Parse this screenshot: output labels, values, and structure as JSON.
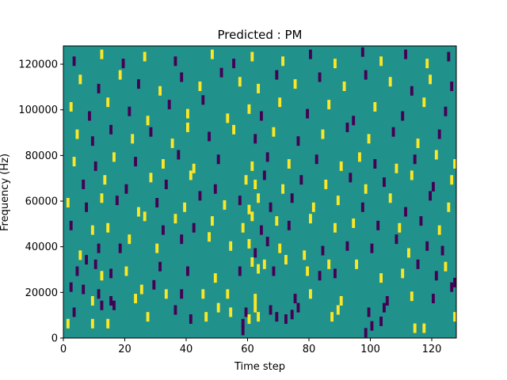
{
  "chart_data": {
    "type": "heatmap",
    "title": "Predicted : PM",
    "xlabel": "Time step",
    "ylabel": "Frequency (Hz)",
    "xlim": [
      0,
      128
    ],
    "ylim": [
      0,
      128000
    ],
    "x_ticks": [
      0,
      20,
      40,
      60,
      80,
      100,
      120
    ],
    "x_tick_labels": [
      "0",
      "20",
      "40",
      "60",
      "80",
      "100",
      "120"
    ],
    "y_ticks": [
      0,
      20000,
      40000,
      60000,
      80000,
      100000,
      120000
    ],
    "y_tick_labels": [
      "0",
      "20000",
      "40000",
      "60000",
      "80000",
      "100000",
      "120000"
    ],
    "grid": false,
    "colors": {
      "background": "#21918c",
      "low": "#440154",
      "high": "#fde725"
    },
    "value_encoding": {
      "background": 0,
      "low": -1,
      "high": 1
    },
    "cells": [
      {
        "t": 1,
        "f": 7000,
        "v": 1
      },
      {
        "t": 9,
        "f": 7000,
        "v": 1
      },
      {
        "t": 14,
        "f": 7000,
        "v": 1
      },
      {
        "t": 58,
        "f": 7000,
        "v": -1
      },
      {
        "t": 58,
        "f": 4000,
        "v": -1
      },
      {
        "t": 98,
        "f": 3000,
        "v": -1
      },
      {
        "t": 100,
        "f": 6000,
        "v": -1
      },
      {
        "t": 103,
        "f": 8000,
        "v": -1
      },
      {
        "t": 114,
        "f": 5000,
        "v": 1
      },
      {
        "t": 117,
        "f": 5000,
        "v": 1
      },
      {
        "t": 3,
        "f": 12000,
        "v": -1
      },
      {
        "t": 12,
        "f": 15000,
        "v": -1
      },
      {
        "t": 16,
        "f": 15000,
        "v": -1
      },
      {
        "t": 27,
        "f": 10000,
        "v": 1
      },
      {
        "t": 36,
        "f": 13000,
        "v": -1
      },
      {
        "t": 41,
        "f": 9000,
        "v": -1
      },
      {
        "t": 46,
        "f": 10000,
        "v": 1
      },
      {
        "t": 50,
        "f": 14000,
        "v": 1
      },
      {
        "t": 54,
        "f": 12000,
        "v": 1
      },
      {
        "t": 59,
        "f": 12000,
        "v": -1
      },
      {
        "t": 60,
        "f": 9000,
        "v": 1
      },
      {
        "t": 62,
        "f": 14000,
        "v": 1
      },
      {
        "t": 63,
        "f": 10000,
        "v": 1
      },
      {
        "t": 67,
        "f": 13000,
        "v": -1
      },
      {
        "t": 69,
        "f": 10000,
        "v": -1
      },
      {
        "t": 72,
        "f": 9000,
        "v": -1
      },
      {
        "t": 74,
        "f": 11000,
        "v": -1
      },
      {
        "t": 76,
        "f": 14000,
        "v": -1
      },
      {
        "t": 87,
        "f": 10000,
        "v": 1
      },
      {
        "t": 89,
        "f": 13000,
        "v": 1
      },
      {
        "t": 99,
        "f": 12000,
        "v": -1
      },
      {
        "t": 104,
        "f": 14000,
        "v": -1
      },
      {
        "t": 127,
        "f": 10000,
        "v": 1
      },
      {
        "t": 2,
        "f": 23000,
        "v": -1
      },
      {
        "t": 6,
        "f": 22000,
        "v": -1
      },
      {
        "t": 9,
        "f": 17000,
        "v": 1
      },
      {
        "t": 11,
        "f": 20000,
        "v": -1
      },
      {
        "t": 15,
        "f": 17000,
        "v": -1
      },
      {
        "t": 23,
        "f": 18000,
        "v": 1
      },
      {
        "t": 25,
        "f": 22000,
        "v": 1
      },
      {
        "t": 29,
        "f": 24000,
        "v": -1
      },
      {
        "t": 33,
        "f": 20000,
        "v": 1
      },
      {
        "t": 38,
        "f": 20000,
        "v": -1
      },
      {
        "t": 45,
        "f": 20000,
        "v": 1
      },
      {
        "t": 53,
        "f": 20000,
        "v": 1
      },
      {
        "t": 62,
        "f": 18000,
        "v": 1
      },
      {
        "t": 75,
        "f": 18000,
        "v": -1
      },
      {
        "t": 80,
        "f": 20000,
        "v": 1
      },
      {
        "t": 90,
        "f": 17000,
        "v": 1
      },
      {
        "t": 105,
        "f": 17000,
        "v": -1
      },
      {
        "t": 113,
        "f": 19000,
        "v": 1
      },
      {
        "t": 120,
        "f": 18000,
        "v": -1
      },
      {
        "t": 126,
        "f": 23000,
        "v": -1
      },
      {
        "t": 127,
        "f": 25000,
        "v": -1
      },
      {
        "t": 4,
        "f": 30000,
        "v": -1
      },
      {
        "t": 7,
        "f": 35000,
        "v": -1
      },
      {
        "t": 10,
        "f": 33000,
        "v": -1
      },
      {
        "t": 12,
        "f": 28000,
        "v": 1
      },
      {
        "t": 15,
        "f": 29000,
        "v": -1
      },
      {
        "t": 20,
        "f": 30000,
        "v": 1
      },
      {
        "t": 31,
        "f": 32000,
        "v": -1
      },
      {
        "t": 40,
        "f": 30000,
        "v": -1
      },
      {
        "t": 49,
        "f": 27000,
        "v": 1
      },
      {
        "t": 57,
        "f": 30000,
        "v": -1
      },
      {
        "t": 61,
        "f": 34000,
        "v": 1
      },
      {
        "t": 63,
        "f": 31000,
        "v": 1
      },
      {
        "t": 65,
        "f": 33000,
        "v": 1
      },
      {
        "t": 68,
        "f": 30000,
        "v": -1
      },
      {
        "t": 72,
        "f": 35000,
        "v": 1
      },
      {
        "t": 79,
        "f": 30000,
        "v": 1
      },
      {
        "t": 83,
        "f": 28000,
        "v": -1
      },
      {
        "t": 86,
        "f": 33000,
        "v": 1
      },
      {
        "t": 88,
        "f": 29000,
        "v": -1
      },
      {
        "t": 95,
        "f": 33000,
        "v": 1
      },
      {
        "t": 103,
        "f": 27000,
        "v": 1
      },
      {
        "t": 110,
        "f": 29000,
        "v": 1
      },
      {
        "t": 115,
        "f": 33000,
        "v": -1
      },
      {
        "t": 121,
        "f": 28000,
        "v": -1
      },
      {
        "t": 124,
        "f": 32000,
        "v": 1
      },
      {
        "t": 5,
        "f": 37000,
        "v": 1
      },
      {
        "t": 11,
        "f": 40000,
        "v": -1
      },
      {
        "t": 18,
        "f": 40000,
        "v": -1
      },
      {
        "t": 30,
        "f": 40000,
        "v": 1
      },
      {
        "t": 38,
        "f": 44000,
        "v": -1
      },
      {
        "t": 47,
        "f": 45000,
        "v": 1
      },
      {
        "t": 54,
        "f": 41000,
        "v": 1
      },
      {
        "t": 60,
        "f": 42000,
        "v": 1
      },
      {
        "t": 62,
        "f": 38000,
        "v": -1
      },
      {
        "t": 66,
        "f": 43000,
        "v": -1
      },
      {
        "t": 70,
        "f": 40000,
        "v": 1
      },
      {
        "t": 78,
        "f": 37000,
        "v": 1
      },
      {
        "t": 84,
        "f": 39000,
        "v": -1
      },
      {
        "t": 92,
        "f": 41000,
        "v": -1
      },
      {
        "t": 100,
        "f": 40000,
        "v": -1
      },
      {
        "t": 108,
        "f": 44000,
        "v": -1
      },
      {
        "t": 112,
        "f": 38000,
        "v": 1
      },
      {
        "t": 118,
        "f": 41000,
        "v": -1
      },
      {
        "t": 123,
        "f": 39000,
        "v": -1
      },
      {
        "t": 2,
        "f": 50000,
        "v": -1
      },
      {
        "t": 9,
        "f": 48000,
        "v": 1
      },
      {
        "t": 14,
        "f": 49000,
        "v": 1
      },
      {
        "t": 21,
        "f": 44000,
        "v": 1
      },
      {
        "t": 26,
        "f": 54000,
        "v": 1
      },
      {
        "t": 32,
        "f": 48000,
        "v": -1
      },
      {
        "t": 36,
        "f": 53000,
        "v": 1
      },
      {
        "t": 42,
        "f": 49000,
        "v": -1
      },
      {
        "t": 48,
        "f": 52000,
        "v": 1
      },
      {
        "t": 58,
        "f": 49000,
        "v": 1
      },
      {
        "t": 61,
        "f": 54000,
        "v": 1
      },
      {
        "t": 64,
        "f": 48000,
        "v": -1
      },
      {
        "t": 69,
        "f": 52000,
        "v": 1
      },
      {
        "t": 73,
        "f": 50000,
        "v": -1
      },
      {
        "t": 80,
        "f": 53000,
        "v": 1
      },
      {
        "t": 88,
        "f": 49000,
        "v": 1
      },
      {
        "t": 94,
        "f": 51000,
        "v": 1
      },
      {
        "t": 102,
        "f": 50000,
        "v": -1
      },
      {
        "t": 109,
        "f": 49000,
        "v": 1
      },
      {
        "t": 116,
        "f": 52000,
        "v": -1
      },
      {
        "t": 122,
        "f": 48000,
        "v": 1
      },
      {
        "t": 1,
        "f": 60000,
        "v": 1
      },
      {
        "t": 7,
        "f": 58000,
        "v": -1
      },
      {
        "t": 12,
        "f": 62000,
        "v": 1
      },
      {
        "t": 17,
        "f": 61000,
        "v": -1
      },
      {
        "t": 24,
        "f": 56000,
        "v": 1
      },
      {
        "t": 30,
        "f": 60000,
        "v": -1
      },
      {
        "t": 39,
        "f": 58000,
        "v": 1
      },
      {
        "t": 44,
        "f": 63000,
        "v": -1
      },
      {
        "t": 52,
        "f": 59000,
        "v": 1
      },
      {
        "t": 57,
        "f": 61000,
        "v": -1
      },
      {
        "t": 60,
        "f": 57000,
        "v": 1
      },
      {
        "t": 63,
        "f": 62000,
        "v": 1
      },
      {
        "t": 67,
        "f": 58000,
        "v": -1
      },
      {
        "t": 74,
        "f": 62000,
        "v": -1
      },
      {
        "t": 81,
        "f": 58000,
        "v": 1
      },
      {
        "t": 89,
        "f": 61000,
        "v": 1
      },
      {
        "t": 97,
        "f": 58000,
        "v": -1
      },
      {
        "t": 106,
        "f": 62000,
        "v": 1
      },
      {
        "t": 111,
        "f": 56000,
        "v": -1
      },
      {
        "t": 119,
        "f": 63000,
        "v": -1
      },
      {
        "t": 125,
        "f": 58000,
        "v": 1
      },
      {
        "t": 6,
        "f": 68000,
        "v": -1
      },
      {
        "t": 13,
        "f": 70000,
        "v": 1
      },
      {
        "t": 20,
        "f": 66000,
        "v": -1
      },
      {
        "t": 28,
        "f": 71000,
        "v": 1
      },
      {
        "t": 33,
        "f": 68000,
        "v": -1
      },
      {
        "t": 41,
        "f": 72000,
        "v": 1
      },
      {
        "t": 49,
        "f": 66000,
        "v": -1
      },
      {
        "t": 59,
        "f": 70000,
        "v": 1
      },
      {
        "t": 62,
        "f": 68000,
        "v": 1
      },
      {
        "t": 65,
        "f": 72000,
        "v": -1
      },
      {
        "t": 71,
        "f": 66000,
        "v": 1
      },
      {
        "t": 77,
        "f": 70000,
        "v": -1
      },
      {
        "t": 85,
        "f": 68000,
        "v": 1
      },
      {
        "t": 93,
        "f": 71000,
        "v": -1
      },
      {
        "t": 98,
        "f": 66000,
        "v": 1
      },
      {
        "t": 104,
        "f": 69000,
        "v": -1
      },
      {
        "t": 113,
        "f": 72000,
        "v": 1
      },
      {
        "t": 120,
        "f": 67000,
        "v": -1
      },
      {
        "t": 126,
        "f": 70000,
        "v": 1
      },
      {
        "t": 3,
        "f": 78000,
        "v": 1
      },
      {
        "t": 10,
        "f": 76000,
        "v": -1
      },
      {
        "t": 16,
        "f": 80000,
        "v": 1
      },
      {
        "t": 23,
        "f": 78000,
        "v": -1
      },
      {
        "t": 32,
        "f": 77000,
        "v": 1
      },
      {
        "t": 37,
        "f": 81000,
        "v": -1
      },
      {
        "t": 42,
        "f": 75000,
        "v": 1
      },
      {
        "t": 50,
        "f": 79000,
        "v": -1
      },
      {
        "t": 61,
        "f": 76000,
        "v": 1
      },
      {
        "t": 66,
        "f": 80000,
        "v": -1
      },
      {
        "t": 73,
        "f": 77000,
        "v": 1
      },
      {
        "t": 82,
        "f": 79000,
        "v": -1
      },
      {
        "t": 90,
        "f": 76000,
        "v": 1
      },
      {
        "t": 96,
        "f": 80000,
        "v": 1
      },
      {
        "t": 101,
        "f": 77000,
        "v": -1
      },
      {
        "t": 108,
        "f": 75000,
        "v": 1
      },
      {
        "t": 114,
        "f": 79000,
        "v": -1
      },
      {
        "t": 121,
        "f": 81000,
        "v": 1
      },
      {
        "t": 127,
        "f": 77000,
        "v": 1
      },
      {
        "t": 4,
        "f": 90000,
        "v": 1
      },
      {
        "t": 9,
        "f": 87000,
        "v": -1
      },
      {
        "t": 15,
        "f": 92000,
        "v": -1
      },
      {
        "t": 22,
        "f": 88000,
        "v": 1
      },
      {
        "t": 28,
        "f": 91000,
        "v": -1
      },
      {
        "t": 35,
        "f": 86000,
        "v": 1
      },
      {
        "t": 40,
        "f": 93000,
        "v": 1
      },
      {
        "t": 47,
        "f": 89000,
        "v": -1
      },
      {
        "t": 55,
        "f": 92000,
        "v": 1
      },
      {
        "t": 62,
        "f": 88000,
        "v": -1
      },
      {
        "t": 68,
        "f": 91000,
        "v": 1
      },
      {
        "t": 76,
        "f": 87000,
        "v": -1
      },
      {
        "t": 84,
        "f": 90000,
        "v": 1
      },
      {
        "t": 92,
        "f": 93000,
        "v": -1
      },
      {
        "t": 99,
        "f": 88000,
        "v": 1
      },
      {
        "t": 107,
        "f": 91000,
        "v": -1
      },
      {
        "t": 115,
        "f": 86000,
        "v": 1
      },
      {
        "t": 122,
        "f": 90000,
        "v": -1
      },
      {
        "t": 2,
        "f": 102000,
        "v": 1
      },
      {
        "t": 8,
        "f": 98000,
        "v": -1
      },
      {
        "t": 14,
        "f": 104000,
        "v": 1
      },
      {
        "t": 21,
        "f": 100000,
        "v": -1
      },
      {
        "t": 27,
        "f": 96000,
        "v": 1
      },
      {
        "t": 34,
        "f": 103000,
        "v": -1
      },
      {
        "t": 40,
        "f": 99000,
        "v": 1
      },
      {
        "t": 45,
        "f": 105000,
        "v": -1
      },
      {
        "t": 53,
        "f": 97000,
        "v": 1
      },
      {
        "t": 60,
        "f": 101000,
        "v": 1
      },
      {
        "t": 64,
        "f": 98000,
        "v": -1
      },
      {
        "t": 70,
        "f": 104000,
        "v": 1
      },
      {
        "t": 79,
        "f": 99000,
        "v": -1
      },
      {
        "t": 86,
        "f": 103000,
        "v": 1
      },
      {
        "t": 94,
        "f": 96000,
        "v": -1
      },
      {
        "t": 101,
        "f": 102000,
        "v": 1
      },
      {
        "t": 110,
        "f": 98000,
        "v": -1
      },
      {
        "t": 117,
        "f": 104000,
        "v": 1
      },
      {
        "t": 124,
        "f": 100000,
        "v": -1
      },
      {
        "t": 5,
        "f": 114000,
        "v": 1
      },
      {
        "t": 11,
        "f": 110000,
        "v": -1
      },
      {
        "t": 18,
        "f": 116000,
        "v": 1
      },
      {
        "t": 24,
        "f": 112000,
        "v": -1
      },
      {
        "t": 31,
        "f": 109000,
        "v": 1
      },
      {
        "t": 38,
        "f": 115000,
        "v": -1
      },
      {
        "t": 44,
        "f": 111000,
        "v": 1
      },
      {
        "t": 51,
        "f": 117000,
        "v": -1
      },
      {
        "t": 57,
        "f": 113000,
        "v": 1
      },
      {
        "t": 63,
        "f": 110000,
        "v": 1
      },
      {
        "t": 69,
        "f": 116000,
        "v": -1
      },
      {
        "t": 75,
        "f": 112000,
        "v": 1
      },
      {
        "t": 83,
        "f": 115000,
        "v": -1
      },
      {
        "t": 91,
        "f": 111000,
        "v": 1
      },
      {
        "t": 98,
        "f": 116000,
        "v": -1
      },
      {
        "t": 106,
        "f": 113000,
        "v": 1
      },
      {
        "t": 113,
        "f": 109000,
        "v": -1
      },
      {
        "t": 119,
        "f": 114000,
        "v": 1
      },
      {
        "t": 126,
        "f": 111000,
        "v": -1
      },
      {
        "t": 3,
        "f": 122000,
        "v": -1
      },
      {
        "t": 12,
        "f": 125000,
        "v": 1
      },
      {
        "t": 19,
        "f": 121000,
        "v": -1
      },
      {
        "t": 26,
        "f": 124000,
        "v": 1
      },
      {
        "t": 36,
        "f": 122000,
        "v": -1
      },
      {
        "t": 48,
        "f": 125000,
        "v": 1
      },
      {
        "t": 55,
        "f": 121000,
        "v": -1
      },
      {
        "t": 61,
        "f": 124000,
        "v": 1
      },
      {
        "t": 71,
        "f": 122000,
        "v": 1
      },
      {
        "t": 80,
        "f": 125000,
        "v": -1
      },
      {
        "t": 88,
        "f": 121000,
        "v": 1
      },
      {
        "t": 97,
        "f": 126000,
        "v": -1
      },
      {
        "t": 103,
        "f": 122000,
        "v": 1
      },
      {
        "t": 111,
        "f": 125000,
        "v": -1
      },
      {
        "t": 118,
        "f": 121000,
        "v": 1
      },
      {
        "t": 125,
        "f": 124000,
        "v": -1
      }
    ]
  }
}
